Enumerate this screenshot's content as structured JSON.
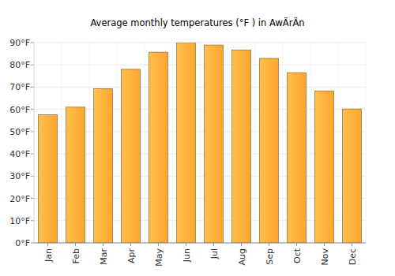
{
  "chart_data": {
    "type": "bar",
    "title": "Average monthly temperatures (°F ) in AwÄrÄn",
    "categories": [
      "Jan",
      "Feb",
      "Mar",
      "Apr",
      "May",
      "Jun",
      "Jul",
      "Aug",
      "Sep",
      "Oct",
      "Nov",
      "Dec"
    ],
    "values": [
      57.6,
      61,
      69.3,
      78,
      85.7,
      90,
      88.9,
      86.7,
      82.9,
      76.5,
      68.3,
      60.2
    ],
    "color": "#fba62f",
    "ylim": [
      0,
      90
    ],
    "yticks": [
      {
        "value": 0,
        "label": "0°F"
      },
      {
        "value": 10,
        "label": "10°F"
      },
      {
        "value": 20,
        "label": "20°F"
      },
      {
        "value": 30,
        "label": "30°F"
      },
      {
        "value": 40,
        "label": "40°F"
      },
      {
        "value": 50,
        "label": "50°F"
      },
      {
        "value": 60,
        "label": "60°F"
      },
      {
        "value": 70,
        "label": "70°F"
      },
      {
        "value": 80,
        "label": "80°F"
      },
      {
        "value": 90,
        "label": "90°F"
      }
    ],
    "grid": true
  }
}
